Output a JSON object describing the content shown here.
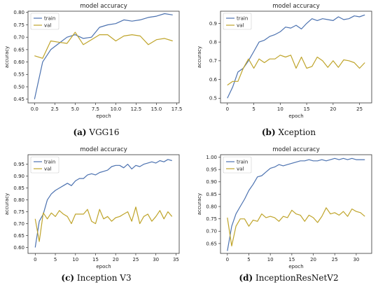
{
  "colors": {
    "train": "#4c72b0",
    "val": "#bfa42a"
  },
  "panels": [
    {
      "caption_tag": "(a)",
      "caption_name": "VGG16"
    },
    {
      "caption_tag": "(b)",
      "caption_name": "Xception"
    },
    {
      "caption_tag": "(c)",
      "caption_name": "Inception V3"
    },
    {
      "caption_tag": "(d)",
      "caption_name": "InceptionResNetV2"
    }
  ],
  "chart_data": [
    {
      "type": "line",
      "title": "model accuracy",
      "xlabel": "epoch",
      "ylabel": "accuracy",
      "legend_position": "top-left",
      "xlim": [
        -0.8,
        17.8
      ],
      "ylim": [
        0.435,
        0.805
      ],
      "xticks": [
        0.0,
        2.5,
        5.0,
        7.5,
        10.0,
        12.5,
        15.0,
        17.5
      ],
      "xtick_labels": [
        "0.0",
        "2.5",
        "5.0",
        "7.5",
        "10.0",
        "12.5",
        "15.0",
        "17.5"
      ],
      "yticks": [
        0.45,
        0.5,
        0.55,
        0.6,
        0.65,
        0.7,
        0.75,
        0.8
      ],
      "ytick_labels": [
        "0.45",
        "0.50",
        "0.55",
        "0.60",
        "0.65",
        "0.70",
        "0.75",
        "0.80"
      ],
      "series": [
        {
          "name": "train",
          "x": [
            0,
            1,
            2,
            3,
            4,
            5,
            6,
            7,
            8,
            9,
            10,
            11,
            12,
            13,
            14,
            15,
            16,
            17
          ],
          "values": [
            0.45,
            0.6,
            0.65,
            0.675,
            0.7,
            0.71,
            0.695,
            0.7,
            0.74,
            0.75,
            0.755,
            0.77,
            0.765,
            0.77,
            0.78,
            0.785,
            0.795,
            0.79
          ]
        },
        {
          "name": "val",
          "x": [
            0,
            1,
            2,
            3,
            4,
            5,
            6,
            7,
            8,
            9,
            10,
            11,
            12,
            13,
            14,
            15,
            16,
            17
          ],
          "values": [
            0.625,
            0.615,
            0.685,
            0.68,
            0.675,
            0.72,
            0.67,
            0.69,
            0.71,
            0.71,
            0.685,
            0.705,
            0.71,
            0.705,
            0.67,
            0.69,
            0.695,
            0.685
          ]
        }
      ]
    },
    {
      "type": "line",
      "title": "model accuracy",
      "xlabel": "epoch",
      "ylabel": "accuracy",
      "legend_position": "top-left",
      "xlim": [
        -1.3,
        27.3
      ],
      "ylim": [
        0.475,
        0.965
      ],
      "xticks": [
        0,
        5,
        10,
        15,
        20,
        25
      ],
      "xtick_labels": [
        "0",
        "5",
        "10",
        "15",
        "20",
        "25"
      ],
      "yticks": [
        0.5,
        0.6,
        0.7,
        0.8,
        0.9
      ],
      "ytick_labels": [
        "0.5",
        "0.6",
        "0.7",
        "0.8",
        "0.9"
      ],
      "series": [
        {
          "name": "train",
          "x": [
            0,
            1,
            2,
            3,
            4,
            5,
            6,
            7,
            8,
            9,
            10,
            11,
            12,
            13,
            14,
            15,
            16,
            17,
            18,
            19,
            20,
            21,
            22,
            23,
            24,
            25,
            26
          ],
          "values": [
            0.5,
            0.56,
            0.64,
            0.66,
            0.7,
            0.75,
            0.8,
            0.81,
            0.83,
            0.84,
            0.855,
            0.88,
            0.875,
            0.89,
            0.87,
            0.9,
            0.925,
            0.915,
            0.925,
            0.92,
            0.915,
            0.935,
            0.92,
            0.925,
            0.94,
            0.935,
            0.945
          ]
        },
        {
          "name": "val",
          "x": [
            0,
            1,
            2,
            3,
            4,
            5,
            6,
            7,
            8,
            9,
            10,
            11,
            12,
            13,
            14,
            15,
            16,
            17,
            18,
            19,
            20,
            21,
            22,
            23,
            24,
            25,
            26
          ],
          "values": [
            0.57,
            0.59,
            0.59,
            0.66,
            0.71,
            0.66,
            0.71,
            0.69,
            0.71,
            0.71,
            0.73,
            0.72,
            0.73,
            0.66,
            0.72,
            0.66,
            0.67,
            0.72,
            0.7,
            0.665,
            0.7,
            0.665,
            0.705,
            0.7,
            0.69,
            0.66,
            0.69
          ]
        }
      ]
    },
    {
      "type": "line",
      "title": "model accuracy",
      "xlabel": "epoch",
      "ylabel": "accuracy",
      "legend_position": "top-left",
      "xlim": [
        -1.8,
        35.8
      ],
      "ylim": [
        0.575,
        0.99
      ],
      "xticks": [
        0,
        5,
        10,
        15,
        20,
        25,
        30,
        35
      ],
      "xtick_labels": [
        "0",
        "5",
        "10",
        "15",
        "20",
        "25",
        "30",
        "35"
      ],
      "yticks": [
        0.6,
        0.65,
        0.7,
        0.75,
        0.8,
        0.85,
        0.9,
        0.95
      ],
      "ytick_labels": [
        "0.60",
        "0.65",
        "0.70",
        "0.75",
        "0.80",
        "0.85",
        "0.90",
        "0.95"
      ],
      "series": [
        {
          "name": "train",
          "x": [
            0,
            1,
            2,
            3,
            4,
            5,
            6,
            7,
            8,
            9,
            10,
            11,
            12,
            13,
            14,
            15,
            16,
            17,
            18,
            19,
            20,
            21,
            22,
            23,
            24,
            25,
            26,
            27,
            28,
            29,
            30,
            31,
            32,
            33,
            34
          ],
          "values": [
            0.6,
            0.71,
            0.74,
            0.8,
            0.825,
            0.84,
            0.85,
            0.86,
            0.87,
            0.86,
            0.88,
            0.89,
            0.89,
            0.905,
            0.91,
            0.905,
            0.915,
            0.92,
            0.925,
            0.94,
            0.945,
            0.945,
            0.935,
            0.95,
            0.93,
            0.945,
            0.94,
            0.95,
            0.955,
            0.96,
            0.955,
            0.965,
            0.96,
            0.97,
            0.965
          ]
        },
        {
          "name": "val",
          "x": [
            0,
            1,
            2,
            3,
            4,
            5,
            6,
            7,
            8,
            9,
            10,
            11,
            12,
            13,
            14,
            15,
            16,
            17,
            18,
            19,
            20,
            21,
            22,
            23,
            24,
            25,
            26,
            27,
            28,
            29,
            30,
            31,
            32,
            33,
            34
          ],
          "values": [
            0.72,
            0.625,
            0.745,
            0.72,
            0.745,
            0.73,
            0.755,
            0.74,
            0.73,
            0.7,
            0.74,
            0.74,
            0.74,
            0.76,
            0.71,
            0.7,
            0.76,
            0.72,
            0.73,
            0.71,
            0.725,
            0.73,
            0.74,
            0.75,
            0.71,
            0.77,
            0.7,
            0.73,
            0.74,
            0.71,
            0.73,
            0.755,
            0.72,
            0.75,
            0.73
          ]
        }
      ]
    },
    {
      "type": "line",
      "title": "model accuracy",
      "xlabel": "epoch",
      "ylabel": "accuracy",
      "legend_position": "top-left",
      "xlim": [
        -1.6,
        33.6
      ],
      "ylim": [
        0.61,
        1.01
      ],
      "xticks": [
        0,
        5,
        10,
        15,
        20,
        25,
        30
      ],
      "xtick_labels": [
        "0",
        "5",
        "10",
        "15",
        "20",
        "25",
        "30"
      ],
      "yticks": [
        0.65,
        0.7,
        0.75,
        0.8,
        0.85,
        0.9,
        0.95,
        1.0
      ],
      "ytick_labels": [
        "0.65",
        "0.70",
        "0.75",
        "0.80",
        "0.85",
        "0.90",
        "0.95",
        "1.00"
      ],
      "series": [
        {
          "name": "train",
          "x": [
            0,
            1,
            2,
            3,
            4,
            5,
            6,
            7,
            8,
            9,
            10,
            11,
            12,
            13,
            14,
            15,
            16,
            17,
            18,
            19,
            20,
            21,
            22,
            23,
            24,
            25,
            26,
            27,
            28,
            29,
            30,
            31,
            32
          ],
          "values": [
            0.62,
            0.72,
            0.77,
            0.8,
            0.83,
            0.865,
            0.89,
            0.92,
            0.925,
            0.94,
            0.955,
            0.96,
            0.97,
            0.965,
            0.97,
            0.975,
            0.98,
            0.985,
            0.985,
            0.99,
            0.985,
            0.985,
            0.99,
            0.985,
            0.99,
            0.995,
            0.99,
            0.995,
            0.99,
            0.995,
            0.99,
            0.99,
            0.99
          ]
        },
        {
          "name": "val",
          "x": [
            0,
            1,
            2,
            3,
            4,
            5,
            6,
            7,
            8,
            9,
            10,
            11,
            12,
            13,
            14,
            15,
            16,
            17,
            18,
            19,
            20,
            21,
            22,
            23,
            24,
            25,
            26,
            27,
            28,
            29,
            30,
            31,
            32
          ],
          "values": [
            0.755,
            0.64,
            0.72,
            0.75,
            0.75,
            0.72,
            0.745,
            0.74,
            0.77,
            0.755,
            0.76,
            0.755,
            0.74,
            0.76,
            0.755,
            0.785,
            0.77,
            0.765,
            0.74,
            0.765,
            0.755,
            0.735,
            0.76,
            0.795,
            0.77,
            0.775,
            0.765,
            0.78,
            0.76,
            0.79,
            0.78,
            0.775,
            0.76
          ]
        }
      ]
    }
  ]
}
